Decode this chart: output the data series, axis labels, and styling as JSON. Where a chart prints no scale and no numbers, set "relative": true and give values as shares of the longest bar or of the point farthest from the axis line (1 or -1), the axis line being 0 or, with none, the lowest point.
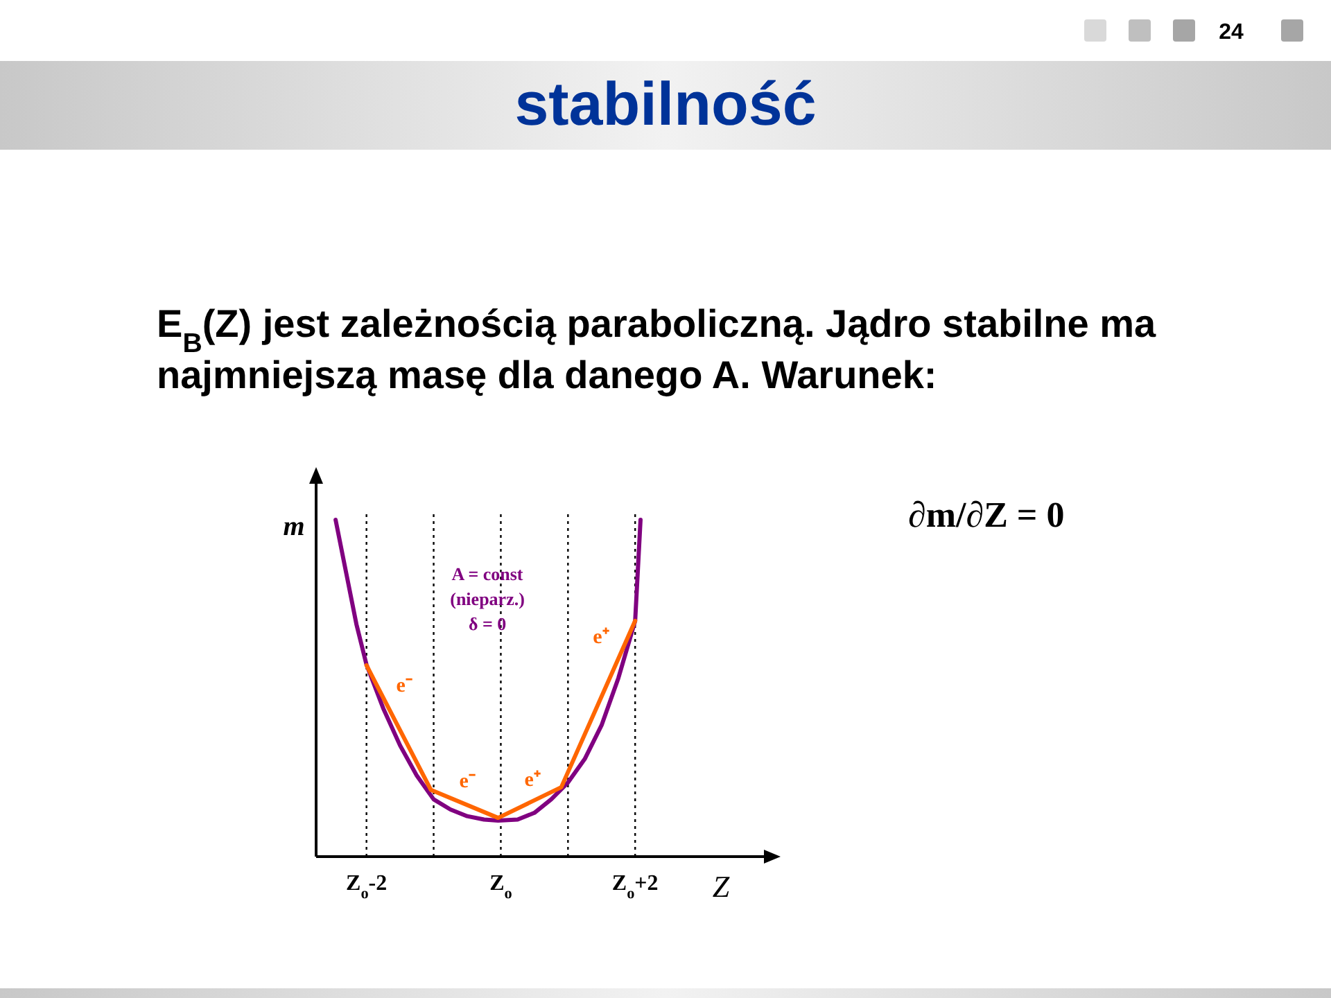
{
  "chart_data": {
    "type": "line",
    "title": "stabilność",
    "subtitle": "E$_{B}$(Z) jest zależnością paraboliczną. Jądro stabilne ma najmniejszą masę dla danego A. Warunek:",
    "xlabel": "Z",
    "ylabel": "m",
    "relative": true,
    "xlim": [
      -2.75,
      4
    ],
    "xticks": [
      {
        "value": -2,
        "label": "Z$_{o}$-2"
      },
      {
        "value": 0,
        "label": "Z$_{o}$"
      },
      {
        "value": 2,
        "label": "Z$_{o}$+2"
      }
    ],
    "series": [
      {
        "color": "#800080",
        "x": [
          -2.46,
          -2.3,
          -2.15,
          -2,
          -1.75,
          -1.5,
          -1.25,
          -1,
          -0.75,
          -0.5,
          -0.25,
          -0.04,
          0.25,
          0.5,
          0.75,
          1,
          1.25,
          1.5,
          1.75,
          2,
          2.08
        ],
        "values": [
          1.0,
          0.84,
          0.69,
          0.57,
          0.44,
          0.33,
          0.24,
          0.17,
          0.14,
          0.12,
          0.11,
          0.107,
          0.11,
          0.13,
          0.17,
          0.22,
          0.29,
          0.39,
          0.53,
          0.7,
          1.0
        ]
      },
      {
        "color": "#ff6600",
        "x": [
          -2,
          -1.04,
          -0.04,
          0.9,
          2
        ],
        "values": [
          0.568,
          0.198,
          0.115,
          0.206,
          0.7
        ]
      }
    ],
    "ref_lines": [
      {
        "axis": "x",
        "value": -2,
        "line_style": "dotted"
      },
      {
        "axis": "x",
        "value": -1,
        "line_style": "dotted"
      },
      {
        "axis": "x",
        "value": 0,
        "line_style": "dotted"
      },
      {
        "axis": "x",
        "value": 1,
        "line_style": "dotted"
      },
      {
        "axis": "x",
        "value": 2,
        "line_style": "dotted"
      }
    ],
    "annotations": [
      "24",
      "∂m/∂Z = 0",
      "A = const\n(nieparz.)\nδ = 0",
      "e⁻",
      "e⁻",
      "e⁺",
      "e⁺"
    ],
    "marker": "none",
    "line_style": "solid",
    "tick_labels": "x"
  }
}
